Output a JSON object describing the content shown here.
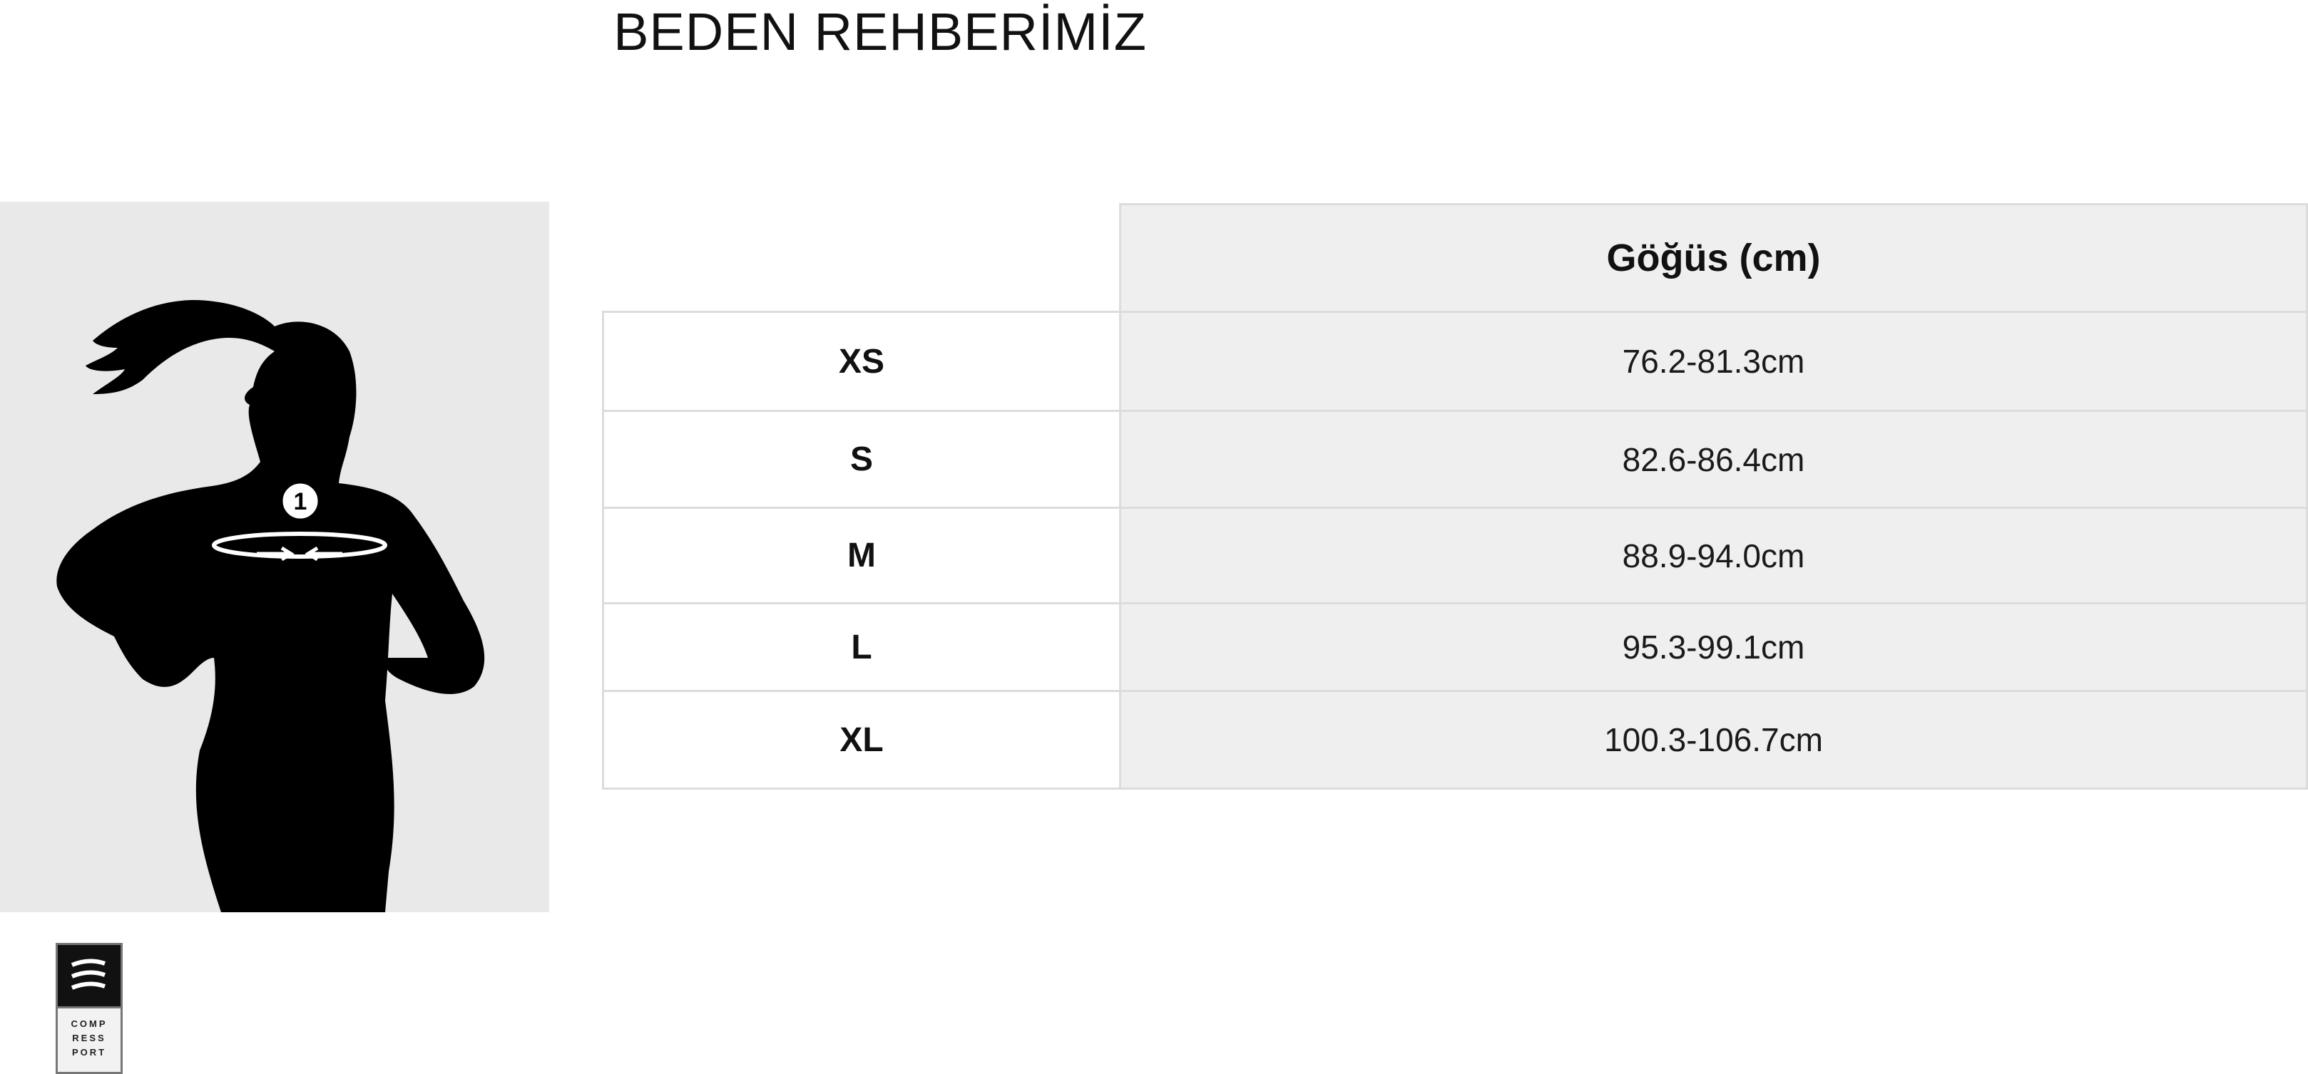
{
  "page": {
    "title": "BEDEN REHBERİMİZ"
  },
  "figure": {
    "measure_marker": "1",
    "logo_lines": [
      "COMP",
      "RESS",
      "PORT"
    ]
  },
  "table": {
    "header": "Göğüs (cm)",
    "rows": [
      {
        "size": "XS",
        "chest": "76.2-81.3cm"
      },
      {
        "size": "S",
        "chest": "82.6-86.4cm"
      },
      {
        "size": "M",
        "chest": "88.9-94.0cm"
      },
      {
        "size": "L",
        "chest": "95.3-99.1cm"
      },
      {
        "size": "XL",
        "chest": "100.3-106.7cm"
      }
    ]
  },
  "colors": {
    "header_bg": "#efefef",
    "border": "#dcdcdc",
    "figure_bg": "#e9e9e9"
  }
}
